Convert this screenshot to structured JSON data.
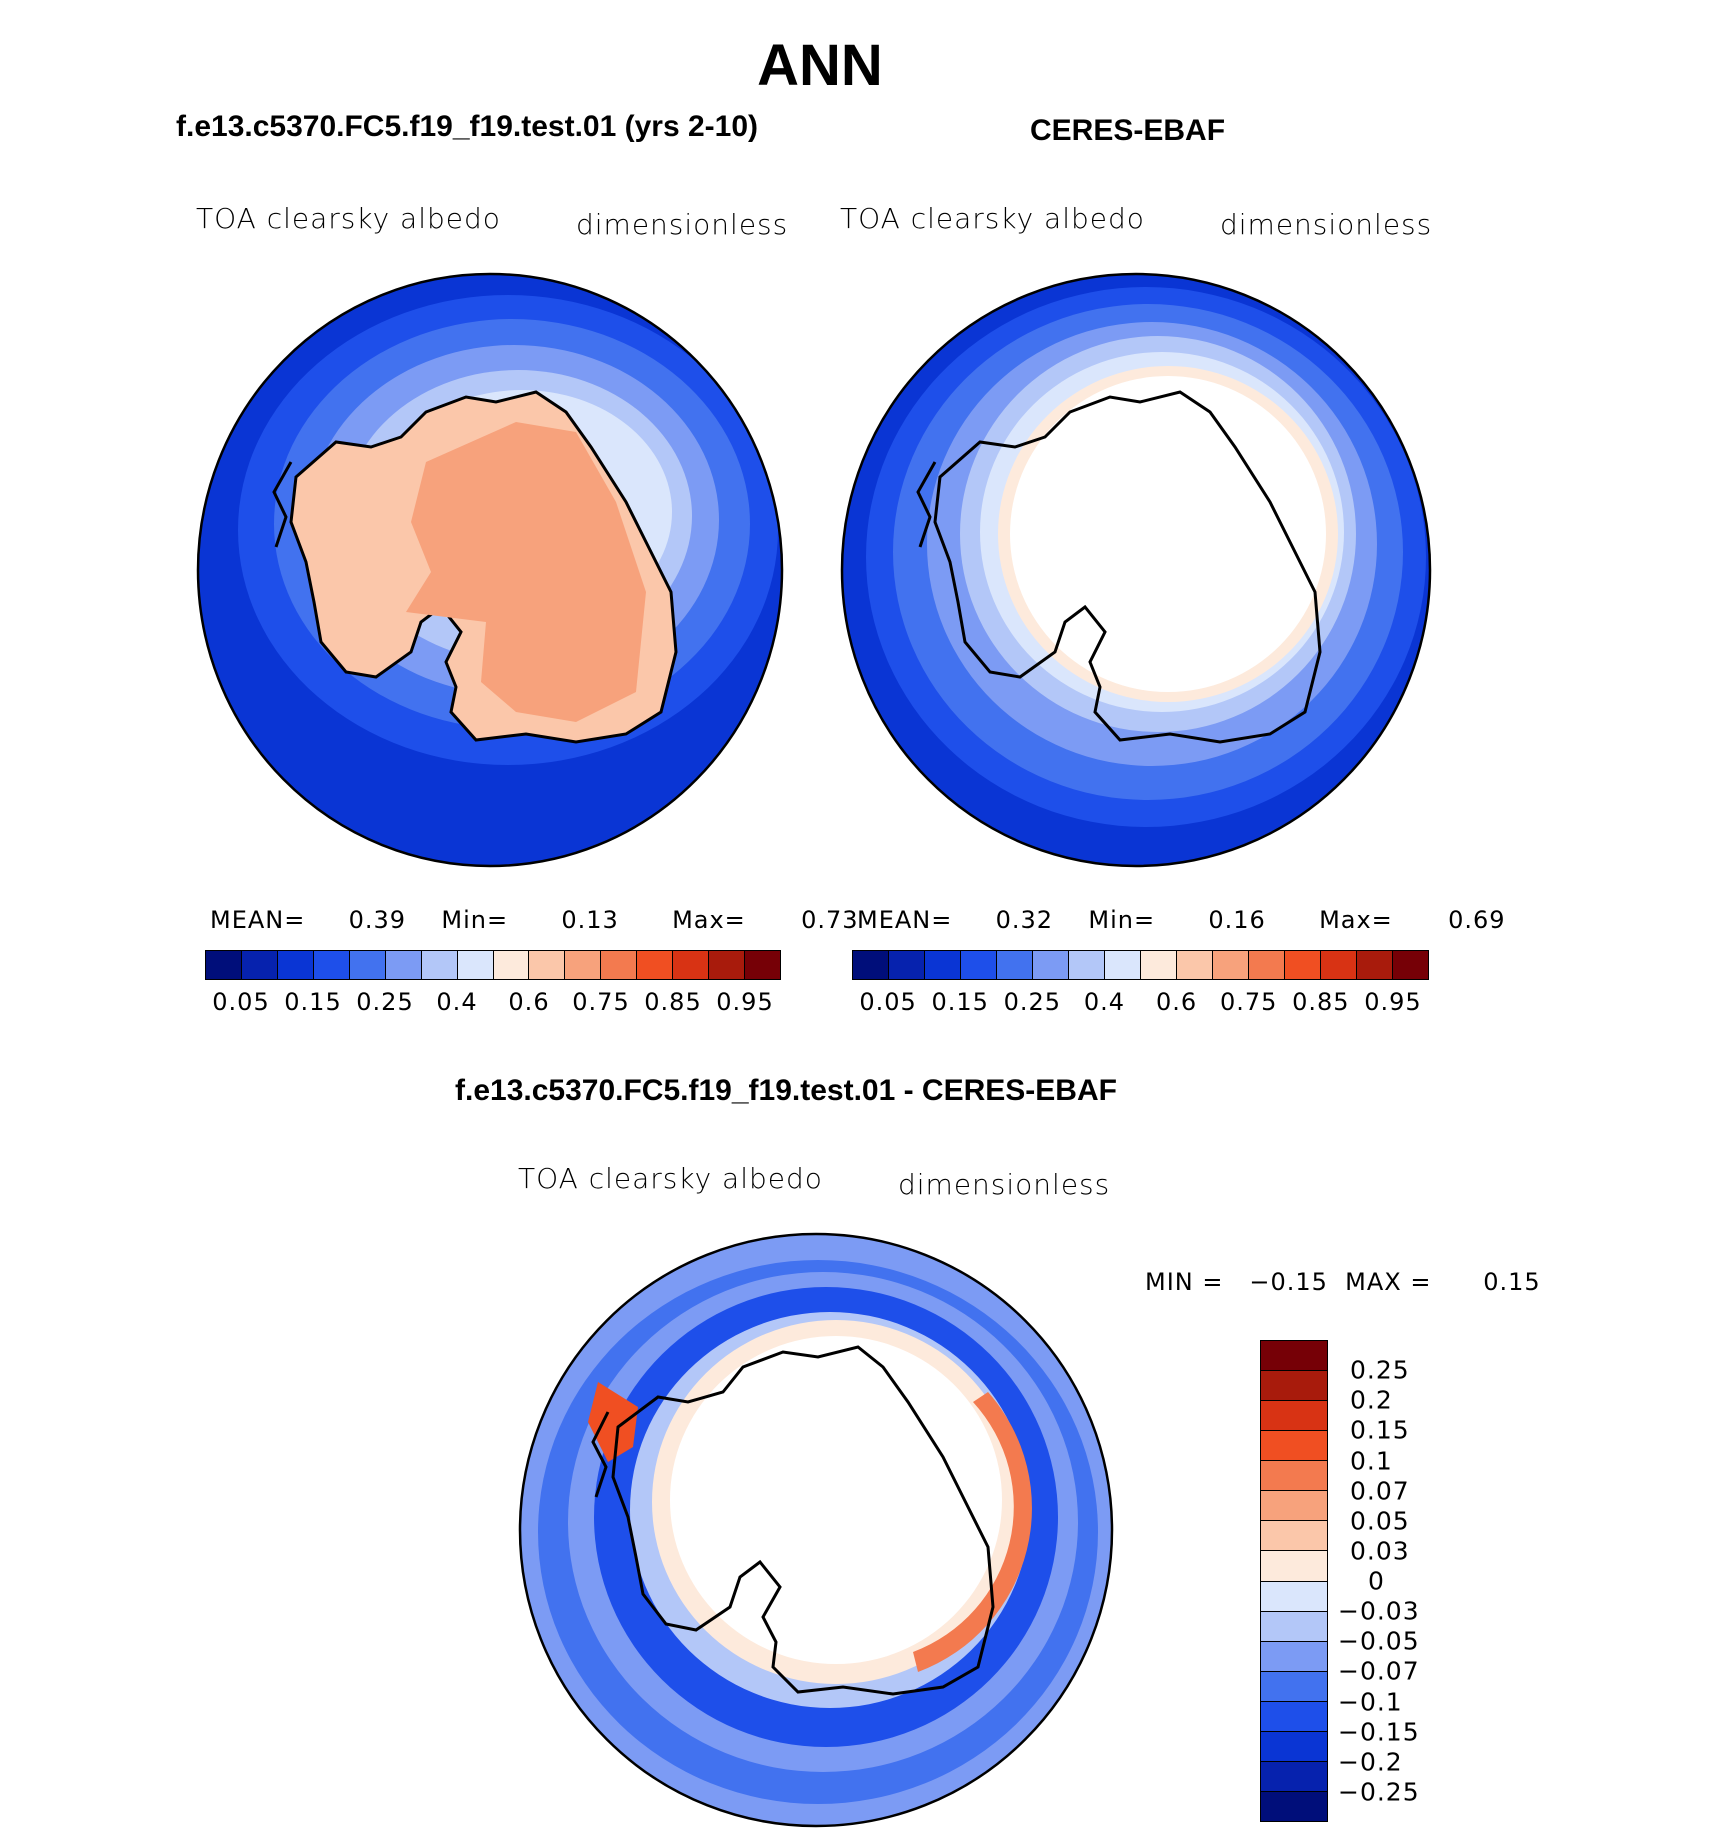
{
  "figure_title": "ANN",
  "panels": {
    "model": {
      "title": "f.e13.c5370.FC5.f19_f19.test.01 (yrs 2-10)",
      "variable": "TOA clearsky albedo",
      "units": "dimensionless",
      "mean_label": "MEAN=",
      "mean": "0.39",
      "min_label": "Min=",
      "min": "0.13",
      "max_label": "Max=",
      "max": "0.73"
    },
    "obs": {
      "title": "CERES-EBAF",
      "variable": "TOA clearsky albedo",
      "units": "dimensionless",
      "mean_label": "MEAN=",
      "mean": "0.32",
      "min_label": "Min=",
      "min": "0.16",
      "max_label": "Max=",
      "max": "0.69"
    },
    "diff": {
      "title": "f.e13.c5370.FC5.f19_f19.test.01 - CERES-EBAF",
      "variable": "TOA clearsky albedo",
      "units": "dimensionless",
      "minmax_text": "MIN =   −0.15  MAX =      0.15"
    }
  },
  "colorbar_abs": {
    "tick_labels": [
      "0.05",
      "0.15",
      "0.25",
      "0.4",
      "0.6",
      "0.75",
      "0.85",
      "0.95"
    ],
    "colors": [
      "#000e7a",
      "#0622ae",
      "#0a35d4",
      "#1e4fea",
      "#4272ef",
      "#7c9bf4",
      "#b3c7f8",
      "#dae6fc",
      "#fdeadc",
      "#fbc7aa",
      "#f7a27c",
      "#f37a4f",
      "#f04f22",
      "#d83314",
      "#a81b0c",
      "#760006"
    ]
  },
  "colorbar_diff": {
    "tick_labels": [
      "0.25",
      "0.2",
      "0.15",
      "0.1",
      "0.07",
      "0.05",
      "0.03",
      "0",
      "−0.03",
      "−0.05",
      "−0.07",
      "−0.1",
      "−0.15",
      "−0.2",
      "−0.25"
    ],
    "colors": [
      "#760006",
      "#a81b0c",
      "#d83314",
      "#f04f22",
      "#f37a4f",
      "#f7a27c",
      "#fbc7aa",
      "#fdeadc",
      "#dae6fc",
      "#b3c7f8",
      "#7c9bf4",
      "#4272ef",
      "#1e4fea",
      "#0a35d4",
      "#0622ae",
      "#000e7a"
    ]
  }
}
